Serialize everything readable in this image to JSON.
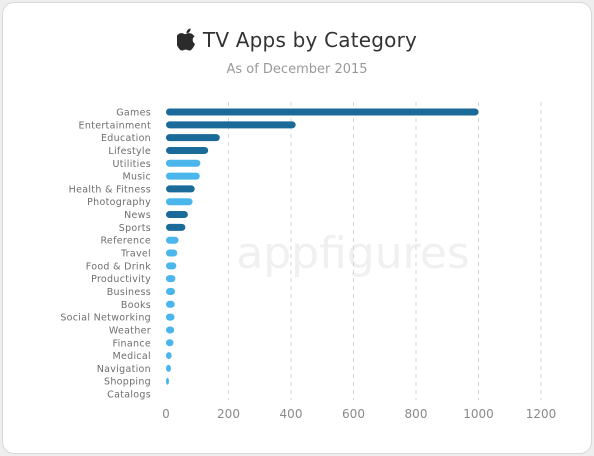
{
  "chart_data": {
    "type": "bar",
    "orientation": "horizontal",
    "title": "TV Apps by Category",
    "subtitle": "As of December 2015",
    "watermark": "appfigures",
    "categories": [
      "Games",
      "Entertainment",
      "Education",
      "Lifestyle",
      "Utilities",
      "Music",
      "Health & Fitness",
      "Photography",
      "News",
      "Sports",
      "Reference",
      "Travel",
      "Food & Drink",
      "Productivity",
      "Business",
      "Books",
      "Social Networking",
      "Weather",
      "Finance",
      "Medical",
      "Navigation",
      "Shopping",
      "Catalogs"
    ],
    "values": [
      1000,
      415,
      172,
      135,
      110,
      108,
      92,
      85,
      70,
      62,
      40,
      36,
      33,
      30,
      29,
      28,
      27,
      26,
      24,
      18,
      16,
      4,
      0
    ],
    "bar_colors": [
      "#1a6a9a",
      "#1a6a9a",
      "#1a6a9a",
      "#1a6a9a",
      "#4ab6ec",
      "#4ab6ec",
      "#1a6a9a",
      "#4ab6ec",
      "#1a6a9a",
      "#1a6a9a",
      "#4ab6ec",
      "#4ab6ec",
      "#4ab6ec",
      "#4ab6ec",
      "#4ab6ec",
      "#4ab6ec",
      "#4ab6ec",
      "#4ab6ec",
      "#4ab6ec",
      "#4ab6ec",
      "#4ab6ec",
      "#4ab6ec",
      "#4ab6ec"
    ],
    "xticks": [
      0,
      200,
      400,
      600,
      800,
      1000,
      1200
    ],
    "xlim": [
      0,
      1200
    ],
    "grid": true
  }
}
